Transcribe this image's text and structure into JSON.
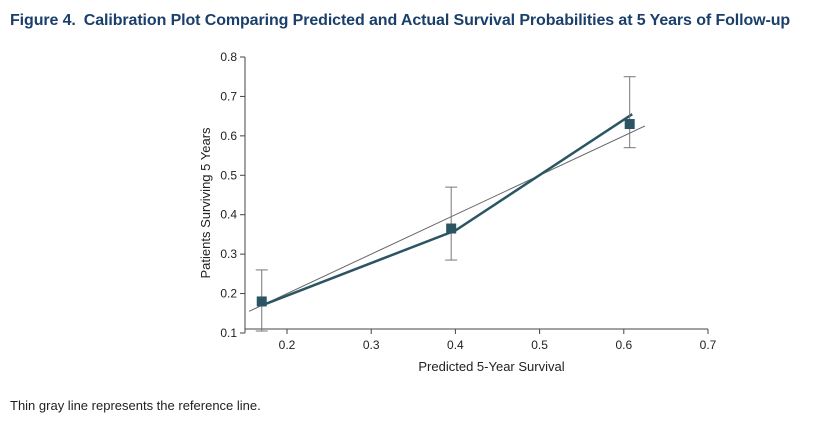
{
  "figure": {
    "number": "Figure 4.",
    "title": "Calibration Plot Comparing Predicted and Actual Survival Probabilities at 5 Years of Follow-up",
    "caption": "Thin gray line represents the reference line."
  },
  "colors": {
    "title": "#1b3f6b",
    "series": "#2b5563",
    "marker": "#2b5563",
    "reference": "#666666",
    "axis": "#444444"
  },
  "chart_data": {
    "type": "line",
    "xlabel": "Predicted 5-Year Survival",
    "ylabel": "Patients Surviving 5 Years",
    "xlim": [
      0.14,
      0.71
    ],
    "ylim": [
      0.1,
      0.8
    ],
    "xticks": [
      0.2,
      0.3,
      0.4,
      0.5,
      0.6,
      0.7
    ],
    "xtick_labels": [
      "0.2",
      "0.3",
      "0.4",
      "0.5",
      "0.6",
      "0.7"
    ],
    "yticks": [
      0.1,
      0.2,
      0.3,
      0.4,
      0.5,
      0.6,
      0.7,
      0.8
    ],
    "ytick_labels": [
      "0.1",
      "0.2",
      "0.3",
      "0.4",
      "0.5",
      "0.6",
      "0.7",
      "0.8"
    ],
    "grid": false,
    "series": [
      {
        "type": "line",
        "x": [
          0.17,
          0.4,
          0.61
        ],
        "y": [
          0.17,
          0.36,
          0.655
        ]
      },
      {
        "type": "scatter",
        "x": [
          0.17,
          0.395,
          0.607
        ],
        "y": [
          0.18,
          0.365,
          0.63
        ],
        "y_lower": [
          0.105,
          0.285,
          0.57
        ],
        "y_upper": [
          0.26,
          0.47,
          0.75
        ]
      },
      {
        "type": "reference-line",
        "x": [
          0.155,
          0.625
        ],
        "y": [
          0.155,
          0.625
        ]
      }
    ]
  }
}
